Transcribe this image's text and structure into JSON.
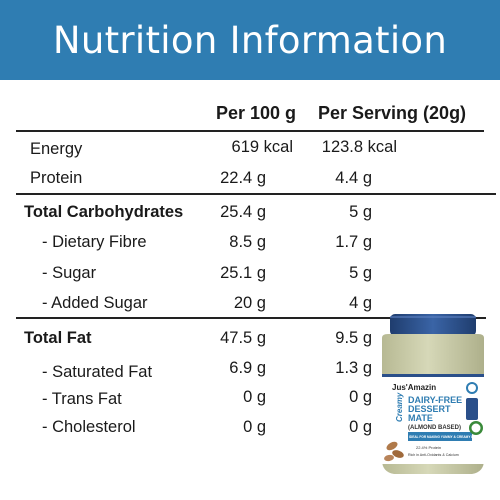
{
  "title": "Nutrition Information",
  "columns": {
    "per100": "Per 100 g",
    "serving": "Per Serving (20g)"
  },
  "rows": [
    {
      "label": "Energy",
      "per100": "619 kcal",
      "serving": "123.8 kcal"
    },
    {
      "label": "Protein",
      "per100": "22.4 g",
      "serving": "4.4 g"
    },
    {
      "label": "Total Carbohydrates",
      "per100": "25.4 g",
      "serving": "5 g"
    },
    {
      "label": "- Dietary Fibre",
      "per100": "8.5 g",
      "serving": "1.7 g"
    },
    {
      "label": "- Sugar",
      "per100": "25.1 g",
      "serving": "5 g"
    },
    {
      "label": "- Added Sugar",
      "per100": "20 g",
      "serving": "4 g"
    },
    {
      "label": "Total Fat",
      "per100": "47.5 g",
      "serving": "9.5 g"
    },
    {
      "label": "- Saturated Fat",
      "per100": "6.9 g",
      "serving": "1.3 g"
    },
    {
      "label": "- Trans Fat",
      "per100": "0 g",
      "serving": "0 g"
    },
    {
      "label": "- Cholesterol",
      "per100": "0 g",
      "serving": "0 g"
    }
  ],
  "product": {
    "brand": "Jus'Amazin",
    "variant": "Creamy",
    "name_line1": "DAIRY-FREE",
    "name_line2": "DESSERT",
    "name_line3": "MATE",
    "subtitle": "(ALMOND BASED)",
    "tagline": "IDEAL FOR MAKING YUMMY & CREAMY DESSERTS",
    "claim1": "22.4% Protein",
    "claim2": "Rich in Anti-Oxidants & Calcium"
  },
  "colors": {
    "banner": "#2f7db2",
    "lid": "#2a4f8a",
    "spread": "#c9cba6"
  }
}
